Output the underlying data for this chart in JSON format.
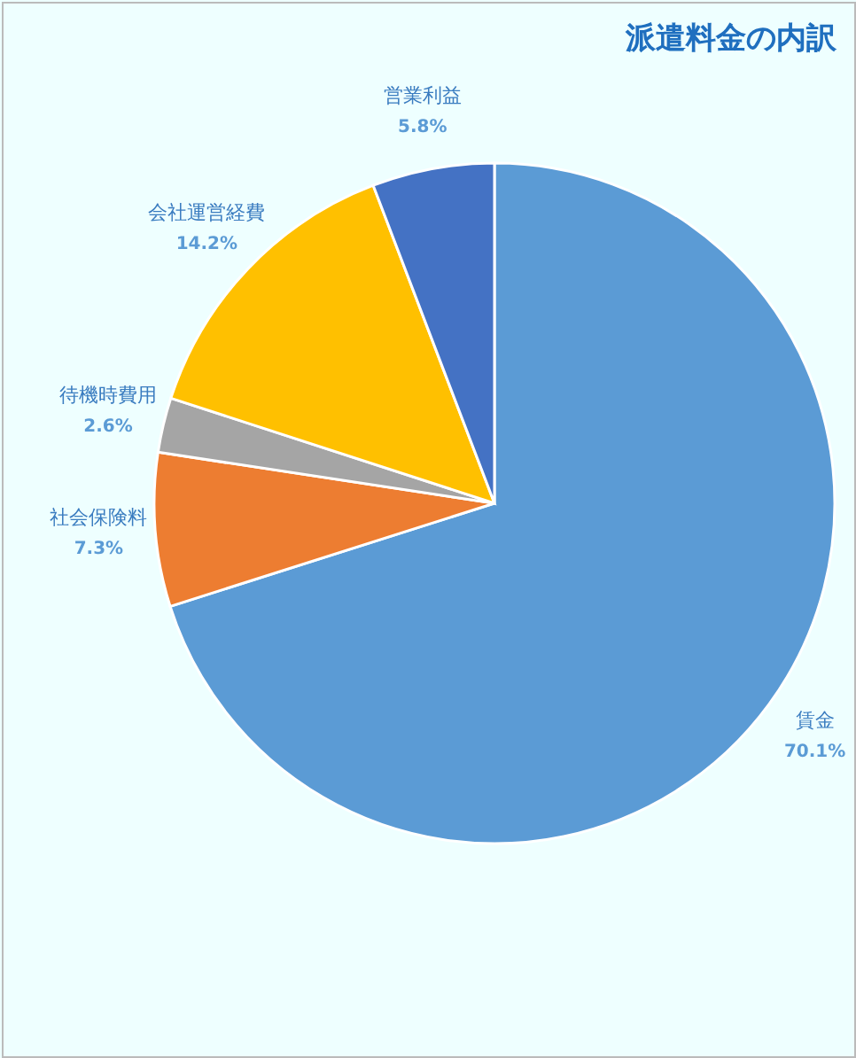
{
  "chart_data": {
    "type": "pie",
    "title": "派遣料金の内訳",
    "categories": [
      "賃金",
      "社会保険料",
      "待機時費用",
      "会社運営経費",
      "営業利益"
    ],
    "values": [
      70.1,
      7.3,
      2.6,
      14.2,
      5.8
    ],
    "value_labels": [
      "70.1%",
      "7.3%",
      "2.6%",
      "14.2%",
      "5.8%"
    ],
    "colors": [
      "#5b9bd5",
      "#ed7d31",
      "#a5a5a5",
      "#ffc000",
      "#4472c4"
    ],
    "legend": false
  }
}
